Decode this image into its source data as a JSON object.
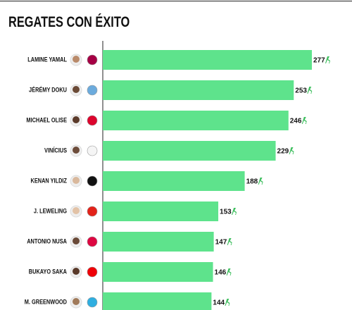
{
  "chart_data": {
    "type": "bar",
    "orientation": "horizontal",
    "title": "REGATES CON ÉXITO",
    "categories": [
      "LAMINE YAMAL",
      "JÉRÉMY DOKU",
      "MICHAEL OLISE",
      "VINÍCIUS",
      "KENAN YILDIZ",
      "J. LEWELING",
      "ANTONIO NUSA",
      "BUKAYO SAKA",
      "M. GREENWOOD"
    ],
    "values": [
      277,
      253,
      246,
      229,
      188,
      153,
      147,
      146,
      144
    ],
    "color": "#5ee38c"
  }
}
